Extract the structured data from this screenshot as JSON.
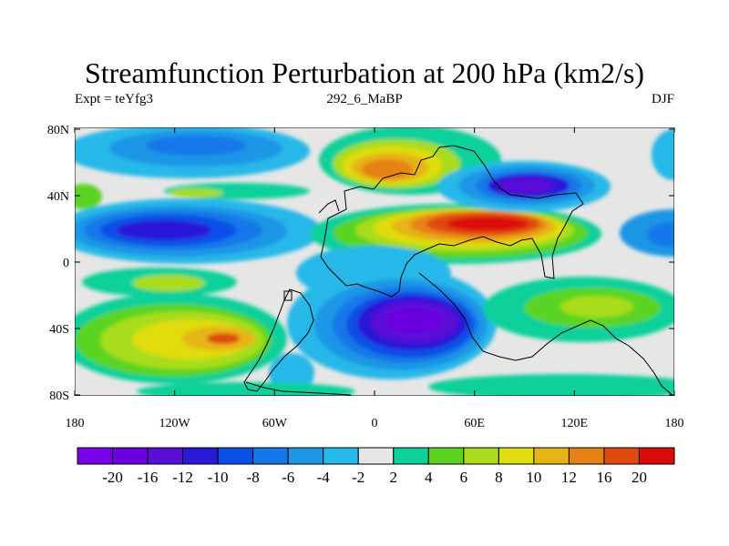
{
  "title": "Streamfunction Perturbation at 200 hPa (km2/s)",
  "subtitle": {
    "left": "Expt = teYfg3",
    "center": "292_6_MaBP",
    "right": "DJF"
  },
  "axes": {
    "x_ticks": [
      "180",
      "120W",
      "60W",
      "0",
      "60E",
      "120E",
      "180"
    ],
    "y_ticks": [
      "80N",
      "40N",
      "0",
      "40S",
      "80S"
    ]
  },
  "colorbar": {
    "colors": [
      "#7a00e8",
      "#6a00de",
      "#5a0fd6",
      "#2a18d8",
      "#0a50e6",
      "#1478e8",
      "#1e96e6",
      "#26b8e8",
      "#e6e6e6",
      "#10d09a",
      "#5ad420",
      "#a8dc1c",
      "#e0dc10",
      "#e6b414",
      "#e68214",
      "#e04a0e",
      "#dc0a0a"
    ],
    "labels": [
      "-20",
      "-16",
      "-12",
      "-10",
      "-8",
      "-6",
      "-4",
      "-2",
      "2",
      "4",
      "6",
      "8",
      "10",
      "12",
      "16",
      "20"
    ]
  },
  "map_data": {
    "anomaly_centers": [
      {
        "name": "north-pacific-negative",
        "lon": -135,
        "lat": 18,
        "value": -14
      },
      {
        "name": "north-pacific-high-lat-negative",
        "lon": -150,
        "lat": 72,
        "value": -6
      },
      {
        "name": "eurasia-positive",
        "lon": 30,
        "lat": 56,
        "value": 14
      },
      {
        "name": "asia-positive",
        "lon": 75,
        "lat": 18,
        "value": 20
      },
      {
        "name": "east-asia-negative",
        "lon": 100,
        "lat": 44,
        "value": -16
      },
      {
        "name": "africa-indian-ocean-negative",
        "lon": 15,
        "lat": -38,
        "value": -18
      },
      {
        "name": "south-pacific-positive",
        "lon": -100,
        "lat": -46,
        "value": 14
      },
      {
        "name": "south-indian-positive",
        "lon": 130,
        "lat": -28,
        "value": 6
      }
    ]
  }
}
